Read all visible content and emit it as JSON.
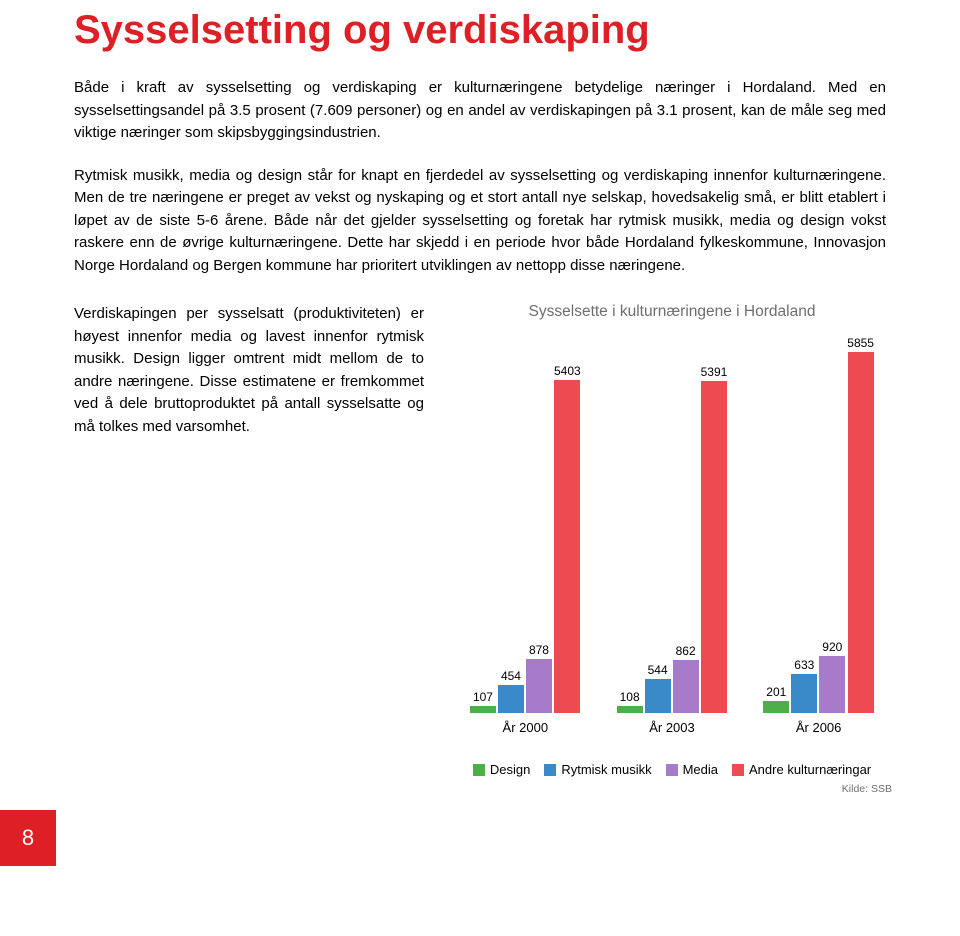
{
  "title": "Sysselsetting og verdiskaping",
  "intro": "Både i kraft av sysselsetting og verdiskaping er kulturnæringene betydelige næringer i Hordaland. Med en sysselsettingsandel på 3.5 prosent (7.609 personer) og en andel av verdiskapingen på 3.1 prosent, kan de måle seg med viktige næringer som skipsbyggingsindustrien.",
  "body": "Rytmisk musikk, media og design står for knapt en fjerdedel av sysselsetting og verdiskaping innenfor kulturnæringene. Men de tre næringene er preget av vekst og nyskaping og et stort antall nye selskap, hovedsakelig små, er blitt etablert i løpet av de siste 5-6 årene. Både når det gjelder sysselsetting og foretak har rytmisk musikk, media og design vokst raskere enn de øvrige kulturnæringene. Dette har skjedd i en periode hvor både Hordaland fylkeskommune, Innovasjon Norge Hordaland og Bergen kommune har prioritert utviklingen av nettopp disse næringene.",
  "left_para": "Verdiskapingen per sysselsatt (produktiviteten) er høyest innenfor media og lavest innenfor rytmisk musikk. Design ligger omtrent midt mellom de to andre næringene. Disse estimatene er fremkommet ved å dele bruttoproduktet på antall sysselsatte og må tolkes med varsomhet.",
  "page_number": "8",
  "chart": {
    "title": "Sysselsette i kulturnæringene i Hordaland",
    "colors": {
      "design": "#4dae4a",
      "rytmisk": "#3a89c9",
      "media": "#a77bca",
      "andre": "#ee4a52"
    },
    "max_value": 6000,
    "years": [
      {
        "label": "År 2000",
        "bars": [
          {
            "series": "design",
            "value": 107,
            "label": "107"
          },
          {
            "series": "rytmisk",
            "value": 454,
            "label": "454"
          },
          {
            "series": "media",
            "value": 878,
            "label": "878"
          },
          {
            "series": "andre",
            "value": 5403,
            "label": "5403"
          }
        ]
      },
      {
        "label": "År 2003",
        "bars": [
          {
            "series": "design",
            "value": 108,
            "label": "108"
          },
          {
            "series": "rytmisk",
            "value": 544,
            "label": "544"
          },
          {
            "series": "media",
            "value": 862,
            "label": "862"
          },
          {
            "series": "andre",
            "value": 5391,
            "label": "5391"
          }
        ]
      },
      {
        "label": "År 2006",
        "bars": [
          {
            "series": "design",
            "value": 201,
            "label": "201"
          },
          {
            "series": "rytmisk",
            "value": 633,
            "label": "633"
          },
          {
            "series": "media",
            "value": 920,
            "label": "920"
          },
          {
            "series": "andre",
            "value": 5855,
            "label": "5855"
          }
        ]
      }
    ],
    "legend": [
      {
        "series": "design",
        "label": "Design"
      },
      {
        "series": "rytmisk",
        "label": "Rytmisk musikk"
      },
      {
        "series": "media",
        "label": "Media"
      },
      {
        "series": "andre",
        "label": "Andre kulturnæringar"
      }
    ],
    "source": "Kilde: SSB"
  }
}
